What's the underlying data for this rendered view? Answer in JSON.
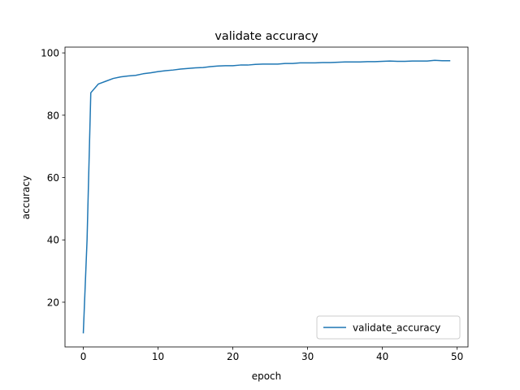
{
  "chart_data": {
    "type": "line",
    "title": "validate accuracy",
    "xlabel": "epoch",
    "ylabel": "accuracy",
    "xlim": [
      -2.45,
      51.45
    ],
    "ylim": [
      5.65,
      101.85
    ],
    "xticks": [
      0,
      10,
      20,
      30,
      40,
      50
    ],
    "yticks": [
      20,
      40,
      60,
      80,
      100
    ],
    "grid": false,
    "legend_position": "lower right",
    "series": [
      {
        "name": "validate_accuracy",
        "color": "#1f77b4",
        "x": [
          0,
          0.5,
          1,
          2,
          3,
          4,
          5,
          6,
          7,
          8,
          9,
          10,
          11,
          12,
          13,
          14,
          15,
          16,
          17,
          18,
          19,
          20,
          21,
          22,
          23,
          24,
          25,
          26,
          27,
          28,
          29,
          30,
          31,
          32,
          33,
          34,
          35,
          36,
          37,
          38,
          39,
          40,
          41,
          42,
          43,
          44,
          45,
          46,
          47,
          48,
          49
        ],
        "y": [
          10.2,
          40.0,
          87.2,
          90.0,
          90.9,
          91.8,
          92.3,
          92.6,
          92.8,
          93.3,
          93.6,
          94.0,
          94.3,
          94.5,
          94.8,
          95.0,
          95.2,
          95.3,
          95.6,
          95.8,
          95.9,
          95.9,
          96.1,
          96.1,
          96.3,
          96.4,
          96.4,
          96.4,
          96.6,
          96.6,
          96.8,
          96.8,
          96.8,
          96.9,
          96.9,
          97.0,
          97.1,
          97.1,
          97.1,
          97.2,
          97.2,
          97.3,
          97.4,
          97.3,
          97.3,
          97.4,
          97.4,
          97.4,
          97.6,
          97.5,
          97.5
        ]
      }
    ]
  }
}
